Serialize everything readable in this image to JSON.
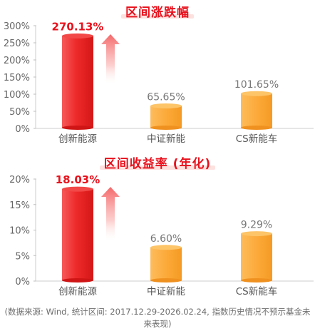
{
  "chart_data": [
    {
      "type": "bar",
      "title": "区间涨跌幅",
      "categories": [
        "创新能源",
        "中证新能",
        "CS新能车"
      ],
      "values": [
        270.13,
        65.65,
        101.65
      ],
      "value_labels": [
        "270.13%",
        "65.65%",
        "101.65%"
      ],
      "yticks": [
        "0%",
        "50%",
        "100%",
        "150%",
        "200%",
        "250%",
        "300%"
      ],
      "ylim": [
        0,
        300
      ],
      "highlight_index": 0,
      "colors": {
        "highlight": "#ee2a2a",
        "other": "#fcaa3a",
        "highlight_label": "#e8111c",
        "other_label": "#777777"
      }
    },
    {
      "type": "bar",
      "title": "区间收益率 (年化)",
      "categories": [
        "创新能源",
        "中证新能",
        "CS新能车"
      ],
      "values": [
        18.03,
        6.6,
        9.29
      ],
      "value_labels": [
        "18.03%",
        "6.60%",
        "9.29%"
      ],
      "yticks": [
        "0%",
        "5%",
        "10%",
        "15%",
        "20%"
      ],
      "ylim": [
        0,
        20
      ],
      "highlight_index": 0,
      "colors": {
        "highlight": "#ee2a2a",
        "other": "#fcaa3a",
        "highlight_label": "#e8111c",
        "other_label": "#777777"
      }
    }
  ],
  "footnote": "(数据来源: Wind, 统计区间: 2017.12.29-2026.02.24, 指数历史情况不预示基金未来表现)"
}
